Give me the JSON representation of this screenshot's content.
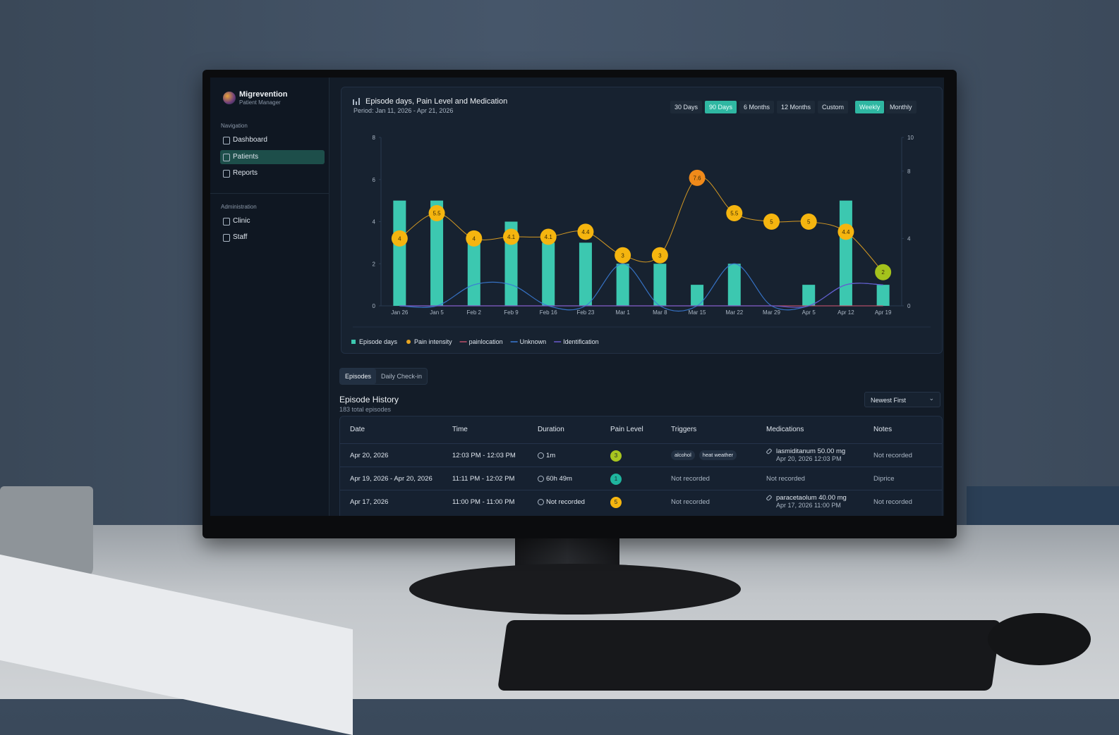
{
  "app": {
    "name": "Migrevention",
    "subtitle": "Patient Manager"
  },
  "sidebar": {
    "sections": [
      {
        "title": "Navigation",
        "items": [
          "Dashboard",
          "Patients",
          "Reports"
        ]
      },
      {
        "title": "Administration",
        "items": [
          "Clinic",
          "Staff"
        ]
      }
    ],
    "active_item": "Patients"
  },
  "chart_controls": {
    "ranges": [
      "30 Days",
      "90 Days",
      "6 Months",
      "12 Months",
      "Custom"
    ],
    "active_range": "90 Days",
    "intervals": [
      "Weekly",
      "Monthly"
    ],
    "active_interval": "Weekly"
  },
  "chart_data": {
    "type": "combo",
    "title": "Episode days, Pain Level and Medication",
    "subtitle": "Period: Jan 11, 2026 - Apr 21, 2026",
    "categories": [
      "Jan 26",
      "Jan 5",
      "Feb 2",
      "Feb 9",
      "Feb 16",
      "Feb 23",
      "Mar 1",
      "Mar 8",
      "Mar 15",
      "Mar 22",
      "Mar 29",
      "Apr 5",
      "Apr 12",
      "Apr 19"
    ],
    "ylim": [
      0,
      8
    ],
    "yticks": [
      0,
      2,
      4,
      6,
      8
    ],
    "y2lim": [
      0,
      10
    ],
    "y2ticks": [
      0,
      4,
      8,
      10
    ],
    "grid": false,
    "series": [
      {
        "name": "Episode days",
        "type": "bar",
        "color": "#3cc8b0",
        "values": [
          5,
          5,
          3,
          4,
          3,
          3,
          2,
          2,
          1,
          2,
          0,
          1,
          5,
          1
        ]
      },
      {
        "name": "Pain intensity",
        "type": "line",
        "axis": "y2",
        "color": "#e8a521",
        "point_colors": [
          "#f5b50f",
          "#f5b50f",
          "#f5b50f",
          "#f5b50f",
          "#f5b50f",
          "#f5b50f",
          "#f5b50f",
          "#f5b50f",
          "#f08a1a",
          "#f5b50f",
          "#f5b50f",
          "#f5b50f",
          "#f5b50f",
          "#a4c21c"
        ],
        "values": [
          4,
          5.5,
          4,
          4.1,
          4.1,
          4.4,
          3,
          3,
          7.6,
          5.5,
          5,
          5,
          4.4,
          2
        ]
      },
      {
        "name": "painlocation",
        "type": "line",
        "color": "#c0506a",
        "values": [
          0,
          0,
          0,
          0,
          0,
          0,
          0,
          0,
          0,
          0,
          0,
          0,
          0,
          0
        ]
      },
      {
        "name": "Unknown",
        "type": "line",
        "color": "#3a7bd5",
        "values": [
          0,
          0,
          1,
          1,
          0,
          0,
          2,
          0,
          0,
          2,
          0,
          0,
          1,
          1
        ]
      },
      {
        "name": "Identification",
        "type": "line",
        "color": "#6a5acd",
        "values": [
          0,
          0,
          0,
          0,
          0,
          0,
          0,
          0,
          0,
          0,
          0,
          0,
          1,
          1
        ]
      }
    ]
  },
  "tabs": {
    "items": [
      "Episodes",
      "Daily Check-in"
    ],
    "active": "Episodes"
  },
  "history": {
    "title": "Episode History",
    "subtitle": "183 total episodes",
    "sort": "Newest First"
  },
  "table": {
    "columns": [
      "Date",
      "Time",
      "Duration",
      "Pain Level",
      "Triggers",
      "Medications",
      "Notes"
    ],
    "rows": [
      {
        "date": "Apr 20, 2026",
        "time": "12:03 PM - 12:03 PM",
        "duration": "1m",
        "pain": 3,
        "pain_color": "#a8c520",
        "triggers": [
          "alcohol",
          "heat weather"
        ],
        "medication": {
          "name": "lasmiditanum 50.00 mg",
          "time": "Apr 20, 2026 12:03 PM"
        },
        "notes": "Not recorded"
      },
      {
        "date": "Apr 19, 2026 - Apr 20, 2026",
        "time": "11:11 PM - 12:02 PM",
        "duration": "60h 49m",
        "pain": 1,
        "pain_color": "#1fb59e",
        "triggers": "Not recorded",
        "medication": "Not recorded",
        "notes": "Diprice"
      },
      {
        "date": "Apr 17, 2026",
        "time": "11:00 PM - 11:00 PM",
        "duration": "Not recorded",
        "pain": 5,
        "pain_color": "#f5b50f",
        "triggers": "Not recorded",
        "medication": {
          "name": "paracetaolum 40.00 mg",
          "time": "Apr 17, 2026 11:00 PM"
        },
        "notes": "Not recorded"
      }
    ]
  }
}
